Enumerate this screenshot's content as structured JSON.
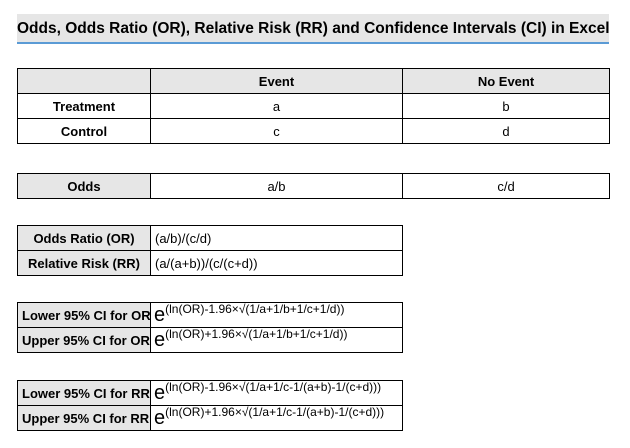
{
  "title": "Odds, Odds Ratio (OR), Relative Risk (RR) and Confidence Intervals (CI) in Excel",
  "contingency": {
    "headers": [
      "",
      "Event",
      "No Event"
    ],
    "rows": [
      {
        "label": "Treatment",
        "event": "a",
        "no_event": "b"
      },
      {
        "label": "Control",
        "event": "c",
        "no_event": "d"
      }
    ]
  },
  "odds": {
    "label": "Odds",
    "event": "a/b",
    "no_event": "c/d"
  },
  "ratios": [
    {
      "label": "Odds Ratio (OR)",
      "formula": "(a/b)/(c/d)"
    },
    {
      "label": "Relative Risk (RR)",
      "formula": "(a/(a+b))/(c/(c+d))"
    }
  ],
  "ci_or": [
    {
      "label": "Lower 95% CI for OR",
      "base": "e",
      "exponent": "(ln(OR)-1.96×√(1/a+1/b+1/c+1/d))"
    },
    {
      "label": "Upper 95% CI for OR",
      "base": "e",
      "exponent": "(ln(OR)+1.96×√(1/a+1/b+1/c+1/d))"
    }
  ],
  "ci_rr": [
    {
      "label": "Lower 95% CI for RR",
      "base": "e",
      "exponent": "(ln(OR)-1.96×√(1/a+1/c-1/(a+b)-1/(c+d)))"
    },
    {
      "label": "Upper 95% CI for RR",
      "base": "e",
      "exponent": "(ln(OR)+1.96×√(1/a+1/c-1/(a+b)-1/(c+d)))"
    }
  ]
}
